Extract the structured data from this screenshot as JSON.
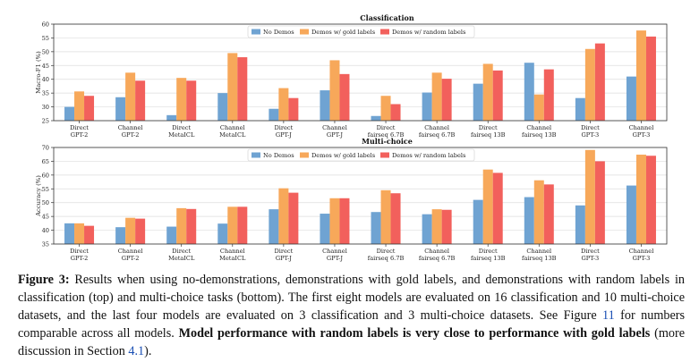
{
  "figure": {
    "caption": {
      "label": "Figure 3:",
      "part1": " Results when using no-demonstrations, demonstrations with gold labels, and demonstrations with random labels in classification (top) and multi-choice tasks (bottom). The first eight models are evaluated on 16 classification and 10 multi-choice datasets, and the last four models are evaluated on 3 classification and 3 multi-choice datasets. See Figure ",
      "ref1": "11",
      "part2": " for numbers comparable across all models. ",
      "bold": "Model performance with random labels is very close to performance with gold labels",
      "part3": " (more discussion in Section ",
      "ref2": "4.1",
      "part4": ")."
    }
  },
  "colors": {
    "no_demos": "#6fa3d2",
    "gold": "#f7a85a",
    "random": "#f2605c"
  },
  "chart_data": [
    {
      "type": "bar",
      "title": "Classification",
      "ylabel": "Macro-F1 (%)",
      "xlabel": "",
      "ylim": [
        25,
        60
      ],
      "yticks": [
        25,
        30,
        35,
        40,
        45,
        50,
        55,
        60
      ],
      "grid": true,
      "legend": "top-center",
      "categories": [
        [
          "Direct",
          "GPT-2"
        ],
        [
          "Channel",
          "GPT-2"
        ],
        [
          "Direct",
          "MetaICL"
        ],
        [
          "Channel",
          "MetaICL"
        ],
        [
          "Direct",
          "GPT-J"
        ],
        [
          "Channel",
          "GPT-J"
        ],
        [
          "Direct",
          "fairseq 6.7B"
        ],
        [
          "Channel",
          "fairseq 6.7B"
        ],
        [
          "Direct",
          "fairseq 13B"
        ],
        [
          "Channel",
          "fairseq 13B"
        ],
        [
          "Direct",
          "GPT-3"
        ],
        [
          "Channel",
          "GPT-3"
        ]
      ],
      "series": [
        {
          "name": "No Demos",
          "values": [
            30.0,
            33.5,
            27.0,
            35.0,
            29.3,
            36.0,
            26.7,
            35.2,
            38.4,
            46.0,
            33.2,
            41.0
          ]
        },
        {
          "name": "Demos w/ gold labels",
          "values": [
            35.6,
            42.4,
            40.5,
            49.5,
            36.8,
            46.9,
            34.0,
            42.4,
            45.6,
            34.5,
            51.0,
            57.7
          ]
        },
        {
          "name": "Demos w/ random labels",
          "values": [
            34.0,
            39.5,
            39.5,
            48.0,
            33.2,
            41.9,
            31.0,
            40.2,
            43.2,
            43.6,
            53.0,
            55.5
          ]
        }
      ]
    },
    {
      "type": "bar",
      "title": "Multi-choice",
      "ylabel": "Accuracy (%)",
      "xlabel": "",
      "ylim": [
        35,
        70
      ],
      "yticks": [
        35,
        40,
        45,
        50,
        55,
        60,
        65,
        70
      ],
      "grid": true,
      "legend": "top-center",
      "categories": [
        [
          "Direct",
          "GPT-2"
        ],
        [
          "Channel",
          "GPT-2"
        ],
        [
          "Direct",
          "MetaICL"
        ],
        [
          "Channel",
          "MetaICL"
        ],
        [
          "Direct",
          "GPT-J"
        ],
        [
          "Channel",
          "GPT-J"
        ],
        [
          "Direct",
          "fairseq 6.7B"
        ],
        [
          "Channel",
          "fairseq 6.7B"
        ],
        [
          "Direct",
          "fairseq 13B"
        ],
        [
          "Channel",
          "fairseq 13B"
        ],
        [
          "Direct",
          "GPT-3"
        ],
        [
          "Channel",
          "GPT-3"
        ]
      ],
      "series": [
        {
          "name": "No Demos",
          "values": [
            42.5,
            41.1,
            41.3,
            42.4,
            47.6,
            46.0,
            46.6,
            45.8,
            51.0,
            52.0,
            49.0,
            56.2
          ]
        },
        {
          "name": "Demos w/ gold labels",
          "values": [
            42.5,
            44.5,
            48.0,
            48.5,
            55.2,
            51.6,
            54.5,
            47.6,
            62.0,
            58.1,
            69.1,
            67.4
          ]
        },
        {
          "name": "Demos w/ random labels",
          "values": [
            41.6,
            44.2,
            47.7,
            48.5,
            53.6,
            51.6,
            53.4,
            47.4,
            60.8,
            56.6,
            65.0,
            67.0
          ]
        }
      ]
    }
  ]
}
